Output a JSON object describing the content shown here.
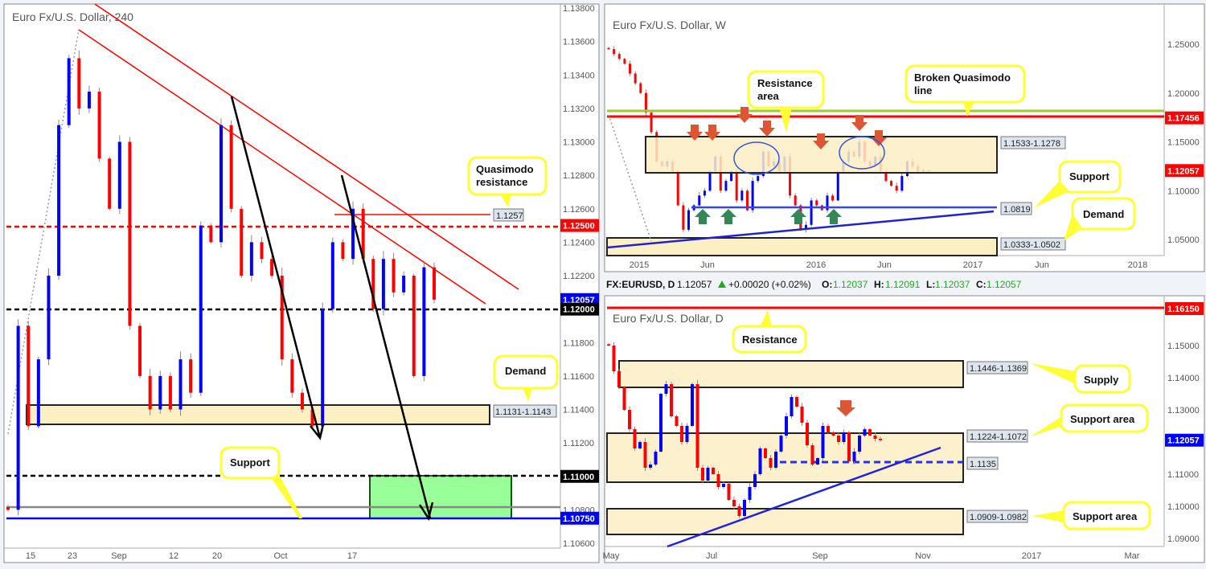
{
  "colors": {
    "up": "#0000ff",
    "down": "#ff0000",
    "wick": "#888888",
    "zone_fill": "#fdefc4",
    "callout_border": "#ffff33",
    "green_zone": "#99ff99",
    "broken_qm_line": "#99cc33"
  },
  "ticker_bar": {
    "symbol": "FX:EURUSD, D",
    "last": "1.12057",
    "change": "+0.00020 (+0.02%)",
    "o_label": "O:",
    "o": "1.12037",
    "h_label": "H:",
    "h": "1.12091",
    "l_label": "L:",
    "l": "1.12037",
    "c_label": "C:",
    "c": "1.12057"
  },
  "chart_data": [
    {
      "type": "candlestick",
      "title": "Euro Fx/U.S. Dollar, 240",
      "ylim": [
        1.106,
        1.138
      ],
      "y_ticks": [
        "1.13800",
        "1.13600",
        "1.13400",
        "1.13200",
        "1.13000",
        "1.12800",
        "1.12600",
        "1.12400",
        "1.12200",
        "1.11800",
        "1.11600",
        "1.11400",
        "1.11200",
        "1.10800",
        "1.10600"
      ],
      "x_ticks": [
        "15",
        "23",
        "Sep",
        "12",
        "20",
        "Oct",
        "17"
      ],
      "closes": [
        1.108,
        1.119,
        1.113,
        1.117,
        1.122,
        1.131,
        1.135,
        1.132,
        1.133,
        1.129,
        1.126,
        1.13,
        1.119,
        1.116,
        1.114,
        1.116,
        1.114,
        1.117,
        1.115,
        1.125,
        1.124,
        1.131,
        1.126,
        1.122,
        1.124,
        1.123,
        1.122,
        1.117,
        1.115,
        1.114,
        1.113,
        1.12,
        1.124,
        1.123,
        1.126,
        1.123,
        1.12,
        1.123,
        1.121,
        1.122,
        1.116,
        1.1225,
        1.12057
      ],
      "price_tags": [
        {
          "value": "1.12500",
          "color": "#ff0000"
        },
        {
          "value": "1.12057",
          "color": "#0000ff"
        },
        {
          "value": "1.12000",
          "color": "#000000"
        },
        {
          "value": "1.11000",
          "color": "#000000"
        },
        {
          "value": "1.10750",
          "color": "#0000ff"
        }
      ],
      "zone_labels": {
        "demand": "1.1131-1.1143",
        "quasimodo": "1.1257"
      },
      "callouts": {
        "quasimodo": [
          "Quasimodo",
          "resistance"
        ],
        "demand": "Demand",
        "support": "Support"
      }
    },
    {
      "type": "candlestick",
      "title": "Euro Fx/U.S. Dollar, W",
      "ylim": [
        1.03,
        1.27
      ],
      "y_ticks": [
        "1.25000",
        "1.20000",
        "1.15000",
        "1.10000",
        "1.05000"
      ],
      "x_ticks": [
        "2015",
        "Jun",
        "2016",
        "Jun",
        "2017",
        "Jun",
        "2018"
      ],
      "closes": [
        1.245,
        1.24,
        1.235,
        1.23,
        1.22,
        1.21,
        1.2,
        1.18,
        1.16,
        1.13,
        1.125,
        1.13,
        1.12,
        1.085,
        1.06,
        1.08,
        1.085,
        1.095,
        1.1,
        1.12,
        1.135,
        1.1,
        1.11,
        1.12,
        1.09,
        1.1,
        1.08,
        1.11,
        1.115,
        1.14,
        1.125,
        1.13,
        1.12,
        1.135,
        1.095,
        1.085,
        1.06,
        1.065,
        1.09,
        1.085,
        1.08,
        1.095,
        1.09,
        1.12,
        1.13,
        1.14,
        1.135,
        1.15,
        1.13,
        1.125,
        1.135,
        1.12,
        1.11,
        1.105,
        1.1,
        1.115,
        1.13,
        1.125,
        1.12,
        1.121,
        1.12057
      ],
      "price_tags": [
        {
          "value": "1.17456",
          "color": "#ff0000"
        },
        {
          "value": "1.12057",
          "color": "#ff0000"
        }
      ],
      "zone_labels": {
        "resistance": "1.1533-1.1278",
        "support": "1.0819",
        "demand": "1.0333-1.0502"
      },
      "callouts": {
        "resistance": [
          "Resistance",
          "area"
        ],
        "broken_qm": [
          "Broken Quasimodo",
          "line"
        ],
        "support": "Support",
        "demand": "Demand"
      }
    },
    {
      "type": "candlestick",
      "title": "Euro Fx/U.S. Dollar, D",
      "ylim": [
        1.0855,
        1.1665
      ],
      "y_ticks": [
        "1.15000",
        "1.14000",
        "1.13000",
        "1.11000",
        "1.10000",
        "1.09000"
      ],
      "x_ticks": [
        "May",
        "Jul",
        "Sep",
        "Nov",
        "2017",
        "Mar"
      ],
      "closes": [
        1.15,
        1.142,
        1.137,
        1.13,
        1.124,
        1.118,
        1.12,
        1.112,
        1.113,
        1.117,
        1.135,
        1.138,
        1.128,
        1.125,
        1.12,
        1.125,
        1.138,
        1.112,
        1.108,
        1.112,
        1.11,
        1.106,
        1.107,
        1.102,
        1.1,
        1.097,
        1.102,
        1.106,
        1.11,
        1.118,
        1.115,
        1.112,
        1.117,
        1.122,
        1.128,
        1.134,
        1.131,
        1.126,
        1.119,
        1.113,
        1.115,
        1.125,
        1.123,
        1.122,
        1.12,
        1.123,
        1.114,
        1.117,
        1.122,
        1.124,
        1.122,
        1.121,
        1.12057
      ],
      "price_tags": [
        {
          "value": "1.16150",
          "color": "#ff0000"
        },
        {
          "value": "1.12057",
          "color": "#0000ff"
        }
      ],
      "zone_labels": {
        "supply": "1.1446-1.1369",
        "support_area": "1.1224-1.1072",
        "dashed": "1.1135",
        "support_area2": "1.0909-1.0982"
      },
      "callouts": {
        "resistance": "Resistance",
        "supply": "Supply",
        "support_area": "Support area",
        "support_area2": "Support area"
      }
    }
  ]
}
